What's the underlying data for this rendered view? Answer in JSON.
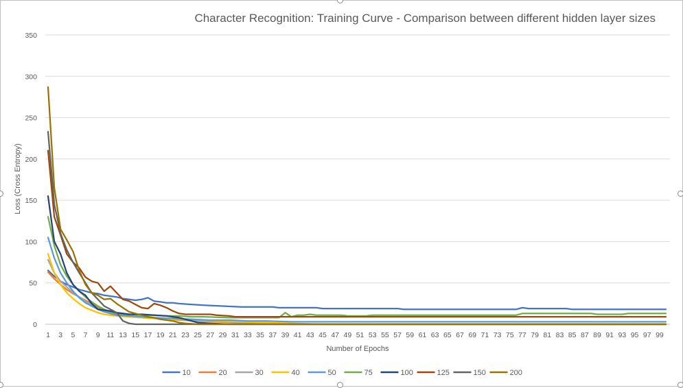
{
  "chart_data": {
    "type": "line",
    "title": "Character Recognition: Training Curve - Comparison between different hidden layer sizes",
    "xlabel": "Number of Epochs",
    "ylabel": "Loss (Cross Entropy)",
    "ylim": [
      0,
      350
    ],
    "yticks": [
      0,
      50,
      100,
      150,
      200,
      250,
      300,
      350
    ],
    "xlim": [
      1,
      100
    ],
    "xticks": [
      1,
      3,
      5,
      7,
      9,
      11,
      13,
      15,
      17,
      19,
      21,
      23,
      25,
      27,
      29,
      31,
      33,
      35,
      37,
      39,
      41,
      43,
      45,
      47,
      49,
      51,
      53,
      55,
      57,
      59,
      61,
      63,
      65,
      67,
      69,
      71,
      73,
      75,
      77,
      79,
      81,
      83,
      85,
      87,
      89,
      91,
      93,
      95,
      97,
      99
    ],
    "grid": true,
    "legend_position": "bottom",
    "series": [
      {
        "name": "10",
        "color": "#4472C4",
        "points": [
          [
            1,
            65
          ],
          [
            2,
            58
          ],
          [
            3,
            52
          ],
          [
            4,
            48
          ],
          [
            5,
            45
          ],
          [
            6,
            42
          ],
          [
            7,
            40
          ],
          [
            8,
            38
          ],
          [
            9,
            37
          ],
          [
            10,
            35
          ],
          [
            11,
            34
          ],
          [
            12,
            33
          ],
          [
            13,
            31
          ],
          [
            14,
            30
          ],
          [
            15,
            29
          ],
          [
            16,
            30
          ],
          [
            17,
            32
          ],
          [
            18,
            28
          ],
          [
            19,
            27
          ],
          [
            20,
            26
          ],
          [
            21,
            26
          ],
          [
            22,
            25
          ],
          [
            24,
            24
          ],
          [
            26,
            23
          ],
          [
            29,
            22
          ],
          [
            32,
            21
          ],
          [
            37,
            21
          ],
          [
            38,
            20
          ],
          [
            44,
            20
          ],
          [
            45,
            19
          ],
          [
            57,
            19
          ],
          [
            58,
            18
          ],
          [
            76,
            18
          ],
          [
            77,
            20
          ],
          [
            78,
            19
          ],
          [
            84,
            19
          ],
          [
            85,
            18
          ],
          [
            100,
            18
          ]
        ]
      },
      {
        "name": "20",
        "color": "#ED7D31",
        "points": [
          [
            1,
            63
          ],
          [
            2,
            55
          ],
          [
            3,
            48
          ],
          [
            4,
            42
          ],
          [
            5,
            37
          ],
          [
            6,
            33
          ],
          [
            7,
            29
          ],
          [
            8,
            25
          ],
          [
            9,
            21
          ],
          [
            10,
            18
          ],
          [
            11,
            15
          ],
          [
            12,
            13
          ],
          [
            13,
            11
          ],
          [
            14,
            10
          ],
          [
            15,
            9
          ],
          [
            17,
            8
          ],
          [
            19,
            7
          ],
          [
            21,
            6
          ],
          [
            23,
            5
          ],
          [
            25,
            4
          ],
          [
            28,
            3
          ],
          [
            31,
            2
          ],
          [
            35,
            1
          ],
          [
            40,
            0
          ],
          [
            100,
            0
          ]
        ]
      },
      {
        "name": "30",
        "color": "#A5A5A5",
        "points": [
          [
            1,
            78
          ],
          [
            2,
            62
          ],
          [
            3,
            52
          ],
          [
            4,
            45
          ],
          [
            5,
            38
          ],
          [
            6,
            33
          ],
          [
            7,
            28
          ],
          [
            8,
            23
          ],
          [
            9,
            19
          ],
          [
            10,
            16
          ],
          [
            11,
            13
          ],
          [
            12,
            11
          ],
          [
            13,
            10
          ],
          [
            14,
            9
          ],
          [
            16,
            8
          ],
          [
            18,
            7
          ],
          [
            20,
            6
          ],
          [
            22,
            5
          ],
          [
            25,
            4
          ],
          [
            29,
            3
          ],
          [
            33,
            2
          ],
          [
            38,
            1
          ],
          [
            45,
            0
          ],
          [
            100,
            0
          ]
        ]
      },
      {
        "name": "40",
        "color": "#FFC000",
        "points": [
          [
            1,
            85
          ],
          [
            2,
            62
          ],
          [
            3,
            48
          ],
          [
            4,
            38
          ],
          [
            5,
            31
          ],
          [
            6,
            25
          ],
          [
            7,
            20
          ],
          [
            8,
            17
          ],
          [
            9,
            14
          ],
          [
            10,
            12
          ],
          [
            11,
            11
          ],
          [
            12,
            10
          ],
          [
            14,
            9
          ],
          [
            16,
            8
          ],
          [
            18,
            7
          ],
          [
            21,
            6
          ],
          [
            24,
            6
          ],
          [
            26,
            5
          ],
          [
            29,
            4
          ],
          [
            32,
            3
          ],
          [
            36,
            2
          ],
          [
            40,
            1
          ],
          [
            45,
            0
          ],
          [
            100,
            0
          ]
        ]
      },
      {
        "name": "50",
        "color": "#5B9BD5",
        "points": [
          [
            1,
            105
          ],
          [
            2,
            80
          ],
          [
            3,
            62
          ],
          [
            4,
            50
          ],
          [
            5,
            40
          ],
          [
            6,
            32
          ],
          [
            7,
            26
          ],
          [
            8,
            22
          ],
          [
            9,
            18
          ],
          [
            10,
            15
          ],
          [
            11,
            13
          ],
          [
            12,
            11
          ],
          [
            14,
            10
          ],
          [
            16,
            9
          ],
          [
            18,
            8
          ],
          [
            21,
            7
          ],
          [
            24,
            6
          ],
          [
            27,
            5
          ],
          [
            30,
            5
          ],
          [
            33,
            4
          ],
          [
            36,
            4
          ],
          [
            40,
            3
          ],
          [
            100,
            3
          ]
        ]
      },
      {
        "name": "75",
        "color": "#70AD47",
        "points": [
          [
            1,
            130
          ],
          [
            2,
            95
          ],
          [
            3,
            72
          ],
          [
            4,
            58
          ],
          [
            5,
            48
          ],
          [
            6,
            40
          ],
          [
            7,
            33
          ],
          [
            8,
            27
          ],
          [
            9,
            22
          ],
          [
            10,
            18
          ],
          [
            11,
            15
          ],
          [
            12,
            13
          ],
          [
            14,
            12
          ],
          [
            16,
            11
          ],
          [
            18,
            11
          ],
          [
            20,
            10
          ],
          [
            22,
            10
          ],
          [
            24,
            9
          ],
          [
            26,
            9
          ],
          [
            30,
            8
          ],
          [
            35,
            8
          ],
          [
            38,
            8
          ],
          [
            39,
            14
          ],
          [
            40,
            9
          ],
          [
            41,
            11
          ],
          [
            42,
            11
          ],
          [
            43,
            12
          ],
          [
            44,
            11
          ],
          [
            48,
            11
          ],
          [
            49,
            10
          ],
          [
            52,
            10
          ],
          [
            53,
            11
          ],
          [
            60,
            11
          ],
          [
            76,
            11
          ],
          [
            77,
            13
          ],
          [
            78,
            13
          ],
          [
            88,
            13
          ],
          [
            89,
            12
          ],
          [
            93,
            12
          ],
          [
            94,
            13
          ],
          [
            100,
            13
          ]
        ]
      },
      {
        "name": "100",
        "color": "#264478",
        "points": [
          [
            1,
            155
          ],
          [
            2,
            100
          ],
          [
            3,
            85
          ],
          [
            4,
            62
          ],
          [
            5,
            48
          ],
          [
            6,
            40
          ],
          [
            7,
            35
          ],
          [
            8,
            25
          ],
          [
            9,
            18
          ],
          [
            10,
            17
          ],
          [
            11,
            16
          ],
          [
            12,
            14
          ],
          [
            13,
            13
          ],
          [
            14,
            12
          ],
          [
            16,
            12
          ],
          [
            18,
            11
          ],
          [
            20,
            10
          ],
          [
            22,
            8
          ],
          [
            23,
            6
          ],
          [
            24,
            4
          ],
          [
            25,
            2
          ],
          [
            27,
            1
          ],
          [
            30,
            0
          ],
          [
            100,
            0
          ]
        ]
      },
      {
        "name": "125",
        "color": "#9E480E",
        "points": [
          [
            1,
            210
          ],
          [
            2,
            130
          ],
          [
            3,
            108
          ],
          [
            4,
            85
          ],
          [
            5,
            75
          ],
          [
            6,
            68
          ],
          [
            7,
            57
          ],
          [
            8,
            52
          ],
          [
            9,
            50
          ],
          [
            10,
            40
          ],
          [
            11,
            46
          ],
          [
            12,
            38
          ],
          [
            13,
            30
          ],
          [
            14,
            28
          ],
          [
            15,
            24
          ],
          [
            16,
            20
          ],
          [
            17,
            19
          ],
          [
            18,
            25
          ],
          [
            19,
            23
          ],
          [
            20,
            20
          ],
          [
            21,
            16
          ],
          [
            22,
            13
          ],
          [
            23,
            12
          ],
          [
            27,
            12
          ],
          [
            28,
            11
          ],
          [
            30,
            10
          ],
          [
            31,
            9
          ],
          [
            100,
            9
          ]
        ]
      },
      {
        "name": "150",
        "color": "#636363",
        "points": [
          [
            1,
            233
          ],
          [
            2,
            145
          ],
          [
            3,
            110
          ],
          [
            4,
            90
          ],
          [
            5,
            75
          ],
          [
            6,
            62
          ],
          [
            7,
            50
          ],
          [
            8,
            38
          ],
          [
            9,
            30
          ],
          [
            10,
            22
          ],
          [
            11,
            18
          ],
          [
            12,
            14
          ],
          [
            13,
            4
          ],
          [
            14,
            1
          ],
          [
            15,
            0
          ],
          [
            100,
            0
          ]
        ]
      },
      {
        "name": "200",
        "color": "#997300",
        "points": [
          [
            1,
            287
          ],
          [
            2,
            165
          ],
          [
            3,
            115
          ],
          [
            4,
            102
          ],
          [
            5,
            88
          ],
          [
            6,
            65
          ],
          [
            7,
            48
          ],
          [
            8,
            38
          ],
          [
            9,
            35
          ],
          [
            10,
            30
          ],
          [
            11,
            31
          ],
          [
            12,
            25
          ],
          [
            13,
            20
          ],
          [
            14,
            15
          ],
          [
            15,
            13
          ],
          [
            16,
            11
          ],
          [
            17,
            9
          ],
          [
            18,
            8
          ],
          [
            19,
            6
          ],
          [
            20,
            5
          ],
          [
            21,
            4
          ],
          [
            22,
            2
          ],
          [
            23,
            1
          ],
          [
            25,
            0
          ],
          [
            100,
            0
          ]
        ]
      }
    ]
  }
}
